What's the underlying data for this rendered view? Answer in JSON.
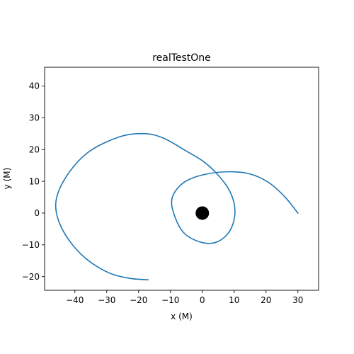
{
  "chart_data": {
    "type": "line",
    "title": "realTestOne",
    "xlabel": "x (M)",
    "ylabel": "y (M)",
    "xlim": [
      -49.5,
      36.5
    ],
    "ylim": [
      -24.3,
      45.9
    ],
    "xticks": [
      -40,
      -30,
      -20,
      -10,
      0,
      10,
      20,
      30
    ],
    "yticks": [
      -20,
      -10,
      0,
      10,
      20,
      30,
      40
    ],
    "grid": false,
    "series": [
      {
        "color": "#1f77b4",
        "points": [
          [
            30,
            0
          ],
          [
            26,
            5
          ],
          [
            20,
            10
          ],
          [
            14,
            12.6
          ],
          [
            7,
            12.9
          ],
          [
            0,
            12
          ],
          [
            -6,
            9.5
          ],
          [
            -9.5,
            5
          ],
          [
            -8.8,
            0
          ],
          [
            -6,
            -5.5
          ],
          [
            0,
            -9
          ],
          [
            5,
            -9.5
          ],
          [
            9,
            -5.5
          ],
          [
            10,
            0
          ],
          [
            9,
            6
          ],
          [
            6,
            11
          ],
          [
            0,
            15.5
          ],
          [
            -8,
            19.5
          ],
          [
            -13,
            22
          ],
          [
            -18,
            25
          ],
          [
            -26,
            24.5
          ],
          [
            -36,
            19
          ],
          [
            -44,
            10
          ],
          [
            -46,
            3
          ],
          [
            -44,
            -5
          ],
          [
            -38,
            -12
          ],
          [
            -30,
            -18
          ],
          [
            -24,
            -20.5
          ],
          [
            -17,
            -21.2
          ]
        ],
        "points_note": "unused"
      },
      {
        "color": "#1f77b4",
        "points": [
          [
            30,
            0
          ],
          [
            26,
            5
          ],
          [
            21,
            9.5
          ],
          [
            15,
            12.3
          ],
          [
            8,
            13
          ],
          [
            0,
            12
          ],
          [
            -6,
            9.5
          ],
          [
            -9.4,
            5
          ],
          [
            -9,
            0
          ],
          [
            -6,
            -6
          ],
          [
            -1,
            -9
          ],
          [
            4,
            -9.3
          ],
          [
            8,
            -6.5
          ],
          [
            10,
            -2
          ],
          [
            10,
            3
          ],
          [
            8,
            8
          ],
          [
            4,
            13
          ],
          [
            0,
            16.5
          ],
          [
            -5,
            19.5
          ],
          [
            -12,
            23.5
          ],
          [
            -18,
            25
          ],
          [
            -26,
            24
          ],
          [
            -36,
            19
          ],
          [
            -43,
            11
          ],
          [
            -46,
            3
          ],
          [
            -44,
            -5
          ],
          [
            -38,
            -13
          ],
          [
            -30,
            -18.5
          ],
          [
            -23,
            -20.5
          ],
          [
            -17,
            -21
          ]
        ]
      }
    ],
    "markers": [
      {
        "x": 0,
        "y": 0,
        "color": "#000000"
      }
    ]
  }
}
